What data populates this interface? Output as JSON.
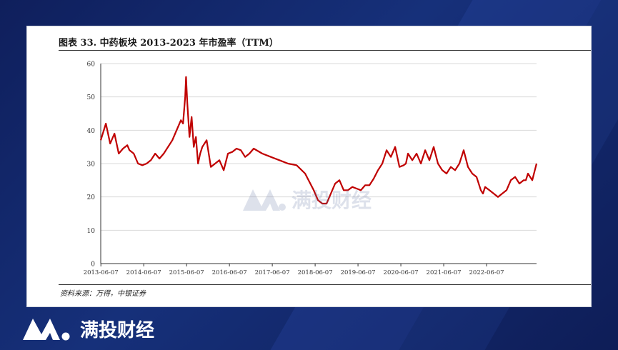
{
  "chart_title": "图表 33.  中药板块 2013-2023 年市盈率（TTM）",
  "source_note": "资料来源：万得，中银证券",
  "watermark_text": "满投财经",
  "brand_text": "满投财经",
  "colors": {
    "line": "#c00000",
    "grid": "#d9d9d9",
    "axis": "#333333"
  },
  "chart_data": {
    "type": "line",
    "title": "图表 33.  中药板块 2013-2023 年市盈率（TTM）",
    "xlabel": "",
    "ylabel": "",
    "ylim": [
      0,
      60
    ],
    "yticks": [
      0,
      10,
      20,
      30,
      40,
      50,
      60
    ],
    "xticks": [
      "2013-06-07",
      "2014-06-07",
      "2015-06-07",
      "2016-06-07",
      "2017-06-07",
      "2018-06-07",
      "2019-06-07",
      "2020-06-07",
      "2021-06-07",
      "2022-06-07"
    ],
    "xlim": [
      2013.43,
      2023.6
    ],
    "grid": "horizontal",
    "legend": "none",
    "series": [
      {
        "x": [
          2013.43,
          2013.55,
          2013.65,
          2013.75,
          2013.85,
          2013.95,
          2014.05,
          2014.1,
          2014.2,
          2014.3,
          2014.4,
          2014.5,
          2014.6,
          2014.7,
          2014.8,
          2014.9,
          2015.0,
          2015.1,
          2015.2,
          2015.3,
          2015.35,
          2015.4,
          2015.42,
          2015.45,
          2015.5,
          2015.55,
          2015.6,
          2015.65,
          2015.7,
          2015.75,
          2015.8,
          2015.9,
          2016.0,
          2016.1,
          2016.2,
          2016.3,
          2016.4,
          2016.5,
          2016.6,
          2016.7,
          2016.8,
          2016.9,
          2017.0,
          2017.2,
          2017.4,
          2017.6,
          2017.8,
          2018.0,
          2018.2,
          2018.4,
          2018.5,
          2018.6,
          2018.7,
          2018.8,
          2018.9,
          2019.0,
          2019.1,
          2019.2,
          2019.3,
          2019.4,
          2019.5,
          2019.6,
          2019.7,
          2019.8,
          2019.9,
          2020.0,
          2020.1,
          2020.2,
          2020.3,
          2020.4,
          2020.5,
          2020.55,
          2020.6,
          2020.7,
          2020.8,
          2020.9,
          2021.0,
          2021.1,
          2021.2,
          2021.3,
          2021.4,
          2021.5,
          2021.55,
          2021.6,
          2021.7,
          2021.8,
          2021.9,
          2022.0,
          2022.1,
          2022.2,
          2022.3,
          2022.35,
          2022.4,
          2022.5,
          2022.6,
          2022.7,
          2022.8,
          2022.9,
          2023.0,
          2023.1,
          2023.2,
          2023.3,
          2023.35,
          2023.4,
          2023.5,
          2023.6
        ],
        "values": [
          37,
          42,
          36,
          39,
          33,
          34.5,
          35.5,
          34,
          33,
          30,
          29.5,
          30,
          31,
          33,
          31.5,
          33,
          35,
          37,
          40,
          43,
          42,
          50,
          56,
          48,
          38,
          44,
          35,
          38,
          30,
          33,
          35,
          37,
          29,
          30,
          31,
          28,
          33,
          33.5,
          34.5,
          34,
          32,
          33,
          34.5,
          33,
          32,
          31,
          30,
          29.5,
          27,
          22,
          19,
          18,
          18,
          21,
          24,
          25,
          22,
          22,
          23,
          22.5,
          22,
          23.5,
          23.5,
          25.5,
          28,
          30,
          34,
          32,
          35,
          29,
          29.5,
          30,
          33,
          31,
          33,
          30,
          34,
          31,
          35,
          30,
          28,
          27,
          28,
          29,
          28,
          30,
          34,
          29,
          27,
          26,
          22,
          21,
          23,
          22,
          21,
          20,
          21,
          22,
          25,
          26,
          24,
          25,
          25,
          27,
          25,
          30
        ]
      }
    ]
  }
}
